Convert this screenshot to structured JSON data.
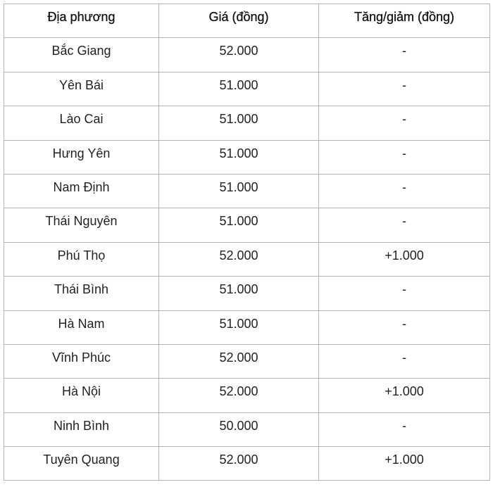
{
  "table": {
    "headers": [
      "Địa phương",
      "Giá (đồng)",
      "Tăng/giảm (đồng)"
    ],
    "rows": [
      [
        "Bắc Giang",
        "52.000",
        "-"
      ],
      [
        "Yên Bái",
        "51.000",
        "-"
      ],
      [
        "Lào Cai",
        "51.000",
        "-"
      ],
      [
        "Hưng Yên",
        "51.000",
        "-"
      ],
      [
        "Nam Định",
        "51.000",
        "-"
      ],
      [
        "Thái Nguyên",
        "51.000",
        "-"
      ],
      [
        "Phú Thọ",
        "52.000",
        "+1.000"
      ],
      [
        "Thái Bình",
        "51.000",
        "-"
      ],
      [
        "Hà Nam",
        "51.000",
        "-"
      ],
      [
        "Vĩnh Phúc",
        "52.000",
        "-"
      ],
      [
        "Hà Nội",
        "52.000",
        "+1.000"
      ],
      [
        "Ninh Bình",
        "50.000",
        "-"
      ],
      [
        "Tuyên Quang",
        "52.000",
        "+1.000"
      ]
    ]
  }
}
